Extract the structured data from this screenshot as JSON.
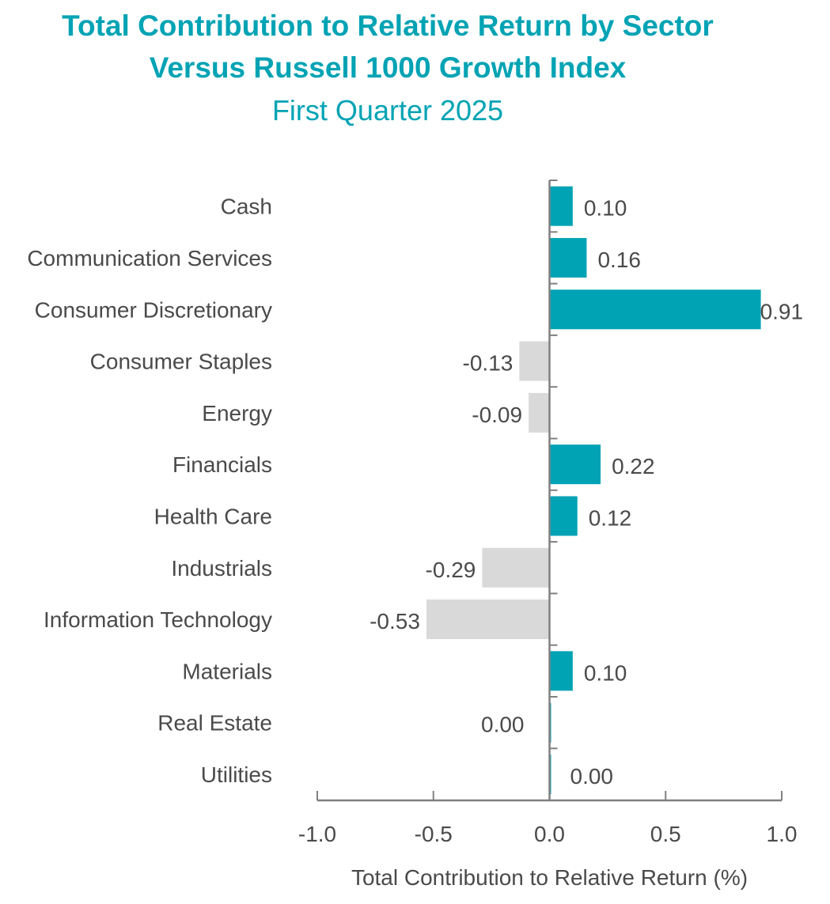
{
  "chart_data": {
    "type": "bar",
    "orientation": "horizontal",
    "title": "Total Contribution to Relative Return by Sector",
    "title_line2": "Versus Russell 1000 Growth Index",
    "subtitle": "First Quarter 2025",
    "categories": [
      "Cash",
      "Communication Services",
      "Consumer Discretionary",
      "Consumer Staples",
      "Energy",
      "Financials",
      "Health Care",
      "Industrials",
      "Information Technology",
      "Materials",
      "Real Estate",
      "Utilities"
    ],
    "values": [
      0.1,
      0.16,
      0.91,
      -0.13,
      -0.09,
      0.22,
      0.12,
      -0.29,
      -0.53,
      0.1,
      0.0,
      0.0
    ],
    "value_labels": [
      "0.10",
      "0.16",
      "0.91",
      "-0.13",
      "-0.09",
      "0.22",
      "0.12",
      "-0.29",
      "-0.53",
      "0.10",
      "0.00",
      "0.00"
    ],
    "xlabel": "Total Contribution to Relative Return (%)",
    "ylabel": "",
    "xlim": [
      -1.0,
      1.0
    ],
    "xticks": [
      -1.0,
      -0.5,
      0.0,
      0.5,
      1.0
    ],
    "xtick_labels": [
      "-1.0",
      "-0.5",
      "0.0",
      "0.5",
      "1.0"
    ],
    "grid": false,
    "colors": {
      "positive": "#00A3B4",
      "negative": "#D9D9D9",
      "title": "#00A3B4",
      "text": "#4a4a4a",
      "axis": "#808080"
    }
  }
}
